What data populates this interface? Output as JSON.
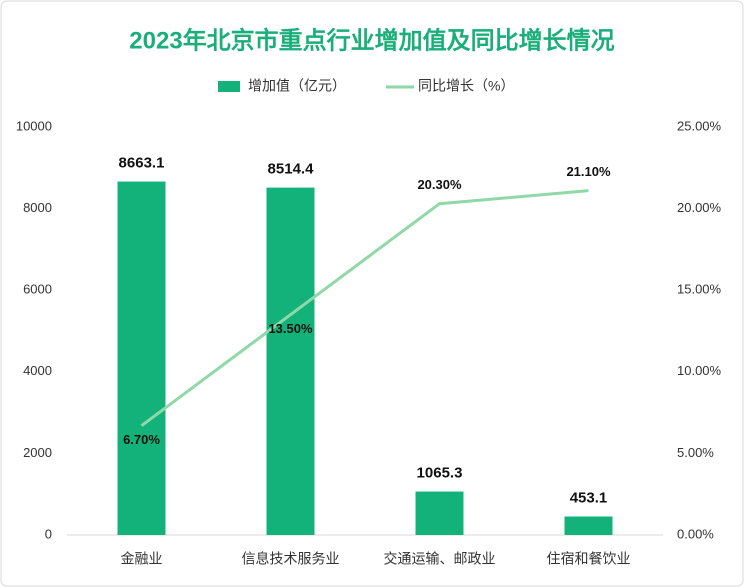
{
  "chart_data": {
    "type": "bar-line",
    "title": "2023年北京市重点行业增加值及同比增长情况",
    "categories": [
      "金融业",
      "信息技术服务业",
      "交通运输、邮政业",
      "住宿和餐饮业"
    ],
    "series": [
      {
        "name": "增加值（亿元）",
        "color": "#14b27b",
        "type": "bar",
        "values": [
          8663.1,
          8514.4,
          1065.3,
          453.1
        ]
      },
      {
        "name": "同比增长（%）",
        "color": "#8fd9a8",
        "type": "line",
        "axis": "y2",
        "values": [
          6.7,
          13.5,
          20.3,
          21.1
        ],
        "value_labels": [
          "6.70%",
          "13.50%",
          "20.30%",
          "21.10%"
        ]
      }
    ],
    "ylim": [
      0,
      10000
    ],
    "yticks": [
      0,
      2000,
      4000,
      6000,
      8000,
      10000
    ],
    "y2lim": [
      0,
      25
    ],
    "y2ticks": [
      {
        "value": 0,
        "label": "0.00%"
      },
      {
        "value": 5,
        "label": "5.00%"
      },
      {
        "value": 10,
        "label": "10.00%"
      },
      {
        "value": 15,
        "label": "15.00%"
      },
      {
        "value": 20,
        "label": "20.00%"
      },
      {
        "value": 25,
        "label": "25.00%"
      }
    ],
    "legend": "top"
  }
}
